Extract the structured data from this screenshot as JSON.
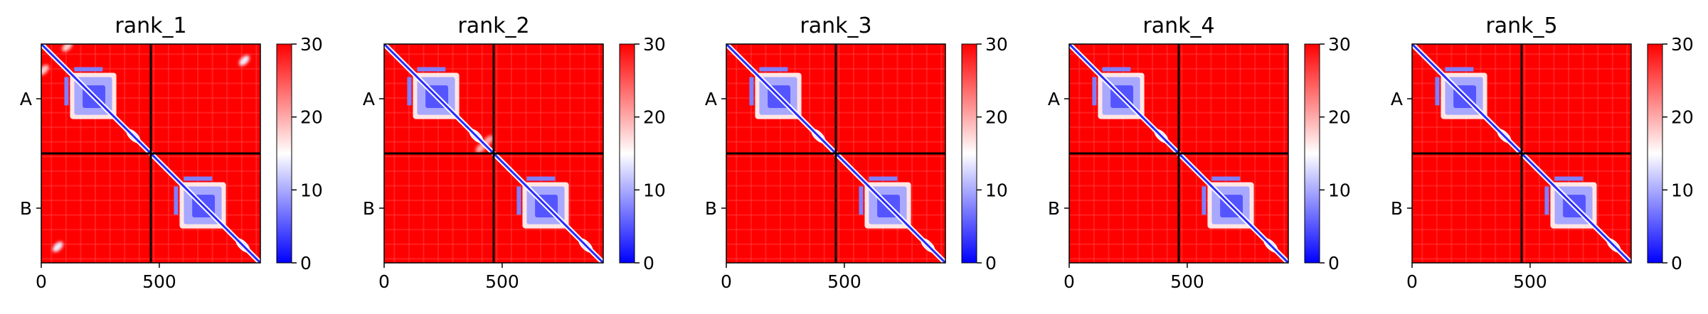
{
  "chart_data": {
    "type": "heatmap",
    "colormap": {
      "name": "bwr",
      "vmin": 0,
      "vmax": 30,
      "stops": [
        "#0000ff",
        "#ffffff",
        "#ff0000"
      ],
      "ticks": [
        0,
        10,
        20,
        30
      ],
      "tick_labels": [
        "0",
        "10",
        "20",
        "30"
      ]
    },
    "matrix_size": 928,
    "chain_boundary": 464,
    "chain_labels": [
      "A",
      "B"
    ],
    "chain_label_positions": [
      232,
      696
    ],
    "x_ticks": [
      0,
      500
    ],
    "x_tick_labels": [
      "0",
      "500"
    ],
    "background_value": 30,
    "divider_color": "#000000",
    "panels": [
      {
        "title": "rank_1",
        "features": [
          {
            "kind": "block",
            "range": [
              140,
              300
            ],
            "value": 5
          },
          {
            "kind": "block",
            "range": [
              604,
              764
            ],
            "value": 5
          },
          {
            "kind": "diag_blob",
            "center": 390,
            "value": 8
          },
          {
            "kind": "diag_blob",
            "center": 854,
            "value": 8
          },
          {
            "kind": "off_blob",
            "x": 70,
            "y": 860,
            "value": 14
          },
          {
            "kind": "off_blob",
            "x": 860,
            "y": 70,
            "value": 14
          },
          {
            "kind": "off_blob",
            "x": 10,
            "y": 110,
            "value": 18
          },
          {
            "kind": "off_blob",
            "x": 110,
            "y": 10,
            "value": 18
          }
        ]
      },
      {
        "title": "rank_2",
        "features": [
          {
            "kind": "block",
            "range": [
              140,
              300
            ],
            "value": 5
          },
          {
            "kind": "block",
            "range": [
              604,
              764
            ],
            "value": 5
          },
          {
            "kind": "diag_blob",
            "center": 390,
            "value": 8
          },
          {
            "kind": "diag_blob",
            "center": 854,
            "value": 8
          },
          {
            "kind": "off_blob",
            "x": 410,
            "y": 440,
            "value": 20
          },
          {
            "kind": "off_blob",
            "x": 440,
            "y": 410,
            "value": 20
          }
        ]
      },
      {
        "title": "rank_3",
        "features": [
          {
            "kind": "block",
            "range": [
              140,
              300
            ],
            "value": 5
          },
          {
            "kind": "block",
            "range": [
              604,
              764
            ],
            "value": 5
          },
          {
            "kind": "diag_blob",
            "center": 390,
            "value": 8
          },
          {
            "kind": "diag_blob",
            "center": 854,
            "value": 8
          }
        ]
      },
      {
        "title": "rank_4",
        "features": [
          {
            "kind": "block",
            "range": [
              140,
              300
            ],
            "value": 5
          },
          {
            "kind": "block",
            "range": [
              604,
              764
            ],
            "value": 5
          },
          {
            "kind": "diag_blob",
            "center": 390,
            "value": 8
          },
          {
            "kind": "diag_blob",
            "center": 854,
            "value": 8
          }
        ]
      },
      {
        "title": "rank_5",
        "features": [
          {
            "kind": "block",
            "range": [
              140,
              300
            ],
            "value": 5
          },
          {
            "kind": "block",
            "range": [
              604,
              764
            ],
            "value": 5
          },
          {
            "kind": "diag_blob",
            "center": 390,
            "value": 8
          },
          {
            "kind": "diag_blob",
            "center": 854,
            "value": 8
          }
        ]
      }
    ]
  }
}
